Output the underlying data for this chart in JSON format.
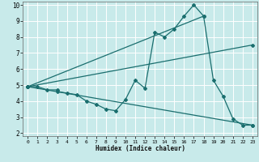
{
  "xlabel": "Humidex (Indice chaleur)",
  "xlim": [
    -0.5,
    23.5
  ],
  "ylim": [
    1.8,
    10.2
  ],
  "xticks": [
    0,
    1,
    2,
    3,
    4,
    5,
    6,
    7,
    8,
    9,
    10,
    11,
    12,
    13,
    14,
    15,
    16,
    17,
    18,
    19,
    20,
    21,
    22,
    23
  ],
  "yticks": [
    2,
    3,
    4,
    5,
    6,
    7,
    8,
    9,
    10
  ],
  "bg_color": "#c8eaea",
  "line_color": "#1a6e6e",
  "grid_color": "#ffffff",
  "lines": [
    {
      "x": [
        0,
        1,
        2,
        3,
        3,
        4,
        5,
        6,
        7,
        8,
        9,
        10,
        11,
        12,
        13,
        14,
        15,
        16,
        17,
        18
      ],
      "y": [
        4.9,
        4.9,
        4.7,
        4.7,
        4.6,
        4.5,
        4.4,
        4.0,
        3.8,
        3.5,
        3.4,
        4.1,
        5.3,
        4.8,
        8.3,
        8.0,
        8.5,
        9.3,
        10.0,
        9.3
      ]
    },
    {
      "x": [
        0,
        18,
        19,
        20,
        21,
        22,
        23
      ],
      "y": [
        4.9,
        9.3,
        5.3,
        4.3,
        2.9,
        2.5,
        2.5
      ]
    },
    {
      "x": [
        0,
        23
      ],
      "y": [
        4.9,
        7.5
      ]
    },
    {
      "x": [
        0,
        23
      ],
      "y": [
        4.9,
        2.5
      ]
    }
  ]
}
